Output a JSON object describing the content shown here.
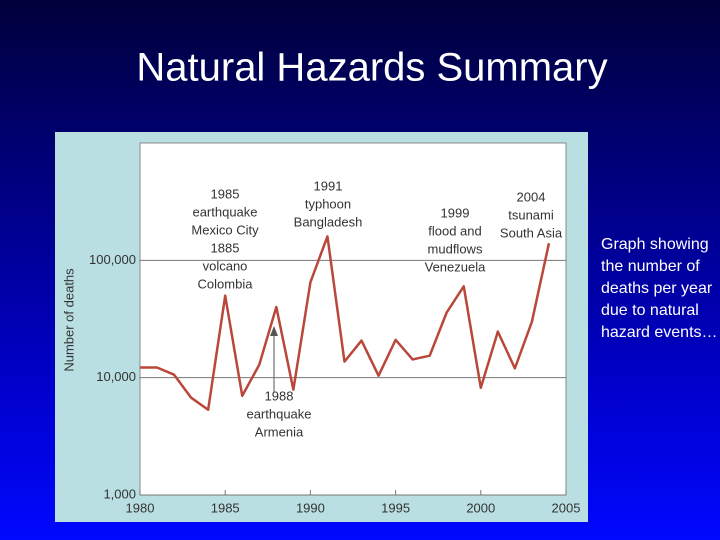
{
  "slide": {
    "title": "Natural Hazards Summary",
    "caption": "Graph showing the number of deaths per year due to natural hazard events…"
  },
  "chart_data": {
    "type": "line",
    "ylabel": "Number of deaths",
    "yscale": "log",
    "grid": true,
    "color": "#b9473a",
    "x": [
      1980,
      1981,
      1982,
      1983,
      1984,
      1985,
      1986,
      1987,
      1988,
      1989,
      1990,
      1991,
      1992,
      1993,
      1994,
      1995,
      1996,
      1997,
      1998,
      1999,
      2000,
      2001,
      2002,
      2003,
      2004
    ],
    "values": [
      12200,
      12200,
      10600,
      6750,
      5330,
      50000,
      7000,
      12900,
      40000,
      7900,
      65000,
      160000,
      13700,
      20700,
      10400,
      21000,
      14300,
      15400,
      36000,
      60000,
      8200,
      24700,
      12000,
      30000,
      140000
    ],
    "xlim": [
      1980,
      2005
    ],
    "xticks": [
      1980,
      1985,
      1990,
      1995,
      2000,
      2005
    ],
    "ylim": [
      1000,
      1000000
    ],
    "yticks": [
      {
        "value": 1000,
        "label": "1,000"
      },
      {
        "value": 10000,
        "label": "10,000"
      },
      {
        "value": 100000,
        "label": "100,000"
      }
    ],
    "annotations": [
      [
        "1985",
        "earthquake",
        "Mexico City",
        "1885",
        "volcano",
        "Colombia"
      ],
      [
        "1991",
        "typhoon",
        "Bangladesh"
      ],
      [
        "1999",
        "flood and",
        "mudflows",
        "Venezuela"
      ],
      [
        "2004",
        "tsunami",
        "South Asia"
      ],
      [
        "1988",
        "earthquake",
        "Armenia"
      ]
    ]
  }
}
